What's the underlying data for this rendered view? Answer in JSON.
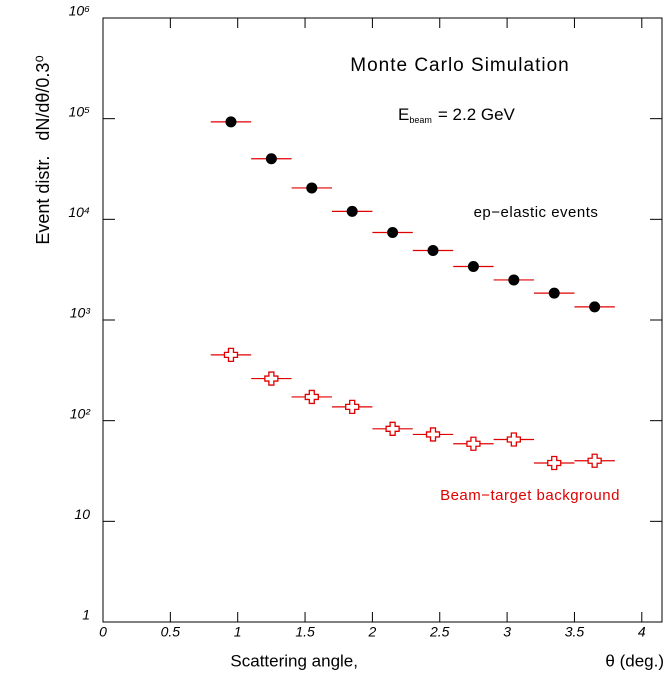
{
  "chart_data": {
    "type": "scatter",
    "title": "Monte Carlo Simulation",
    "annotation": {
      "symbol": "E",
      "subscript": "beam",
      "text": "= 2.2 GeV"
    },
    "xlabel": "Scattering angle,",
    "xlabel_unit": "θ (deg.)",
    "ylabel": "Event distr.   dN/dθ/0.3⁰",
    "log_y": true,
    "xlim": [
      0,
      4.15
    ],
    "ylim": [
      1,
      1000000
    ],
    "xticks": [
      0,
      0.5,
      1,
      1.5,
      2,
      2.5,
      3,
      3.5,
      4
    ],
    "yticks": [
      1,
      10,
      {
        "value": 100,
        "label": "10²"
      },
      {
        "value": 1000,
        "label": "10³"
      },
      {
        "value": 10000,
        "label": "10⁴"
      },
      {
        "value": 100000,
        "label": "10⁵"
      },
      {
        "value": 1000000,
        "label": "10⁶"
      }
    ],
    "x": [
      0.95,
      1.25,
      1.55,
      1.85,
      2.15,
      2.45,
      2.75,
      3.05,
      3.35,
      3.65
    ],
    "xerr": 0.15,
    "series": [
      {
        "name": "ep−elastic events",
        "color": "#000000",
        "marker": "circle",
        "values": [
          93000,
          40000,
          20500,
          12000,
          7400,
          4900,
          3400,
          2500,
          1850,
          1350
        ]
      },
      {
        "name": "Beam−target background",
        "color": "#e00000",
        "marker": "cross",
        "values": [
          450,
          262,
          172,
          137,
          83,
          73,
          59,
          65,
          38,
          40
        ]
      }
    ]
  }
}
